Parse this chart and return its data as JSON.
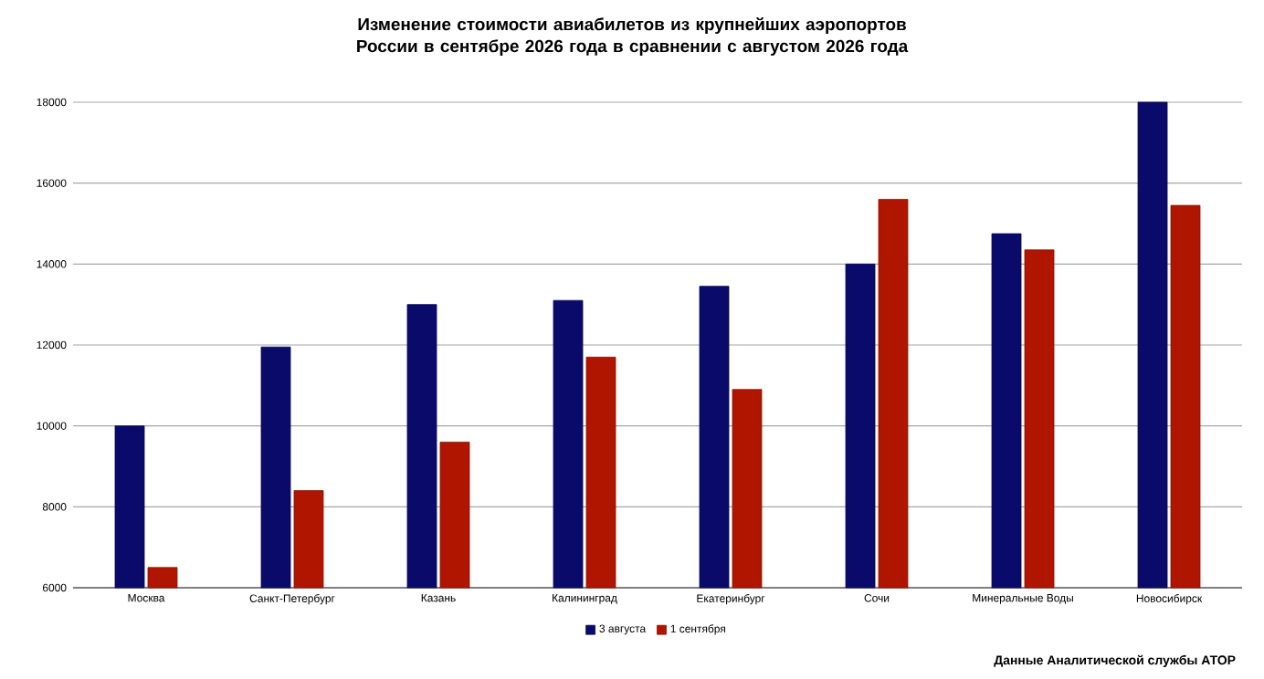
{
  "chart_data": {
    "type": "bar",
    "title": "Изменение стоимости авиабилетов из крупнейших аэропортов России в сентябре 2026 года в сравнении с августом 2026 года",
    "categories": [
      "Москва",
      "Санкт-Петербург",
      "Казань",
      "Калининград",
      "Екатеринбург",
      "Сочи",
      "Минеральные Воды",
      "Новосибирск"
    ],
    "series": [
      {
        "name": "3 августа",
        "color": "#0a0a6a",
        "values": [
          10000,
          11950,
          13000,
          13100,
          13450,
          14000,
          14750,
          18000
        ]
      },
      {
        "name": "1 сентября",
        "color": "#b01500",
        "values": [
          6500,
          8400,
          9600,
          11700,
          10900,
          15600,
          14350,
          15450
        ]
      }
    ],
    "ylim": [
      6000,
      18000
    ],
    "yticks": [
      6000,
      8000,
      10000,
      12000,
      14000,
      16000,
      18000
    ],
    "grid": "y",
    "legend": "bottom",
    "annotations": [
      "Данные Аналитической службы АТОР"
    ]
  }
}
